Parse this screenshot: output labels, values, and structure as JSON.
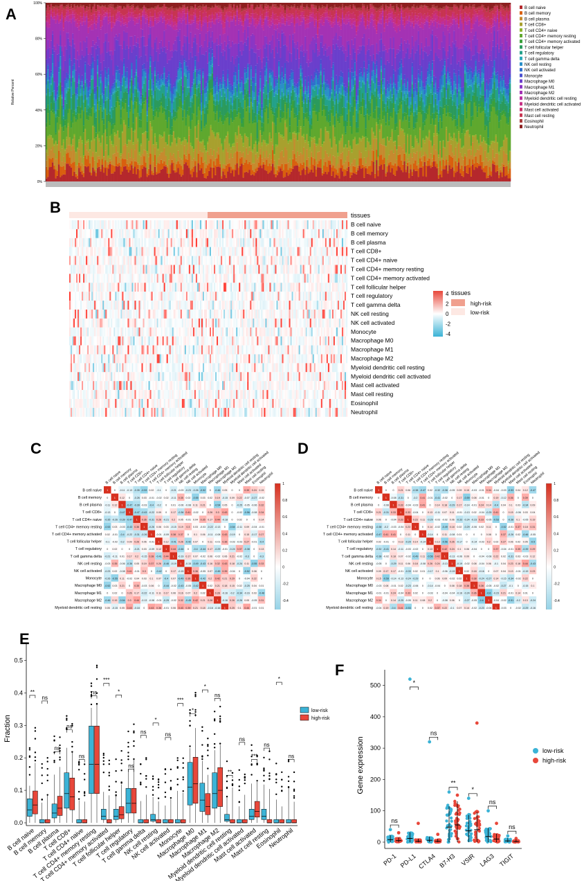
{
  "panels": {
    "A": "A",
    "B": "B",
    "C": "C",
    "D": "D",
    "E": "E",
    "F": "F"
  },
  "cell_types": [
    "B cell naive",
    "B cell memory",
    "B cell plasma",
    "T cell CD8+",
    "T cell CD4+ naive",
    "T cell CD4+ memory resting",
    "T cell CD4+ memory activated",
    "T cell follicular helper",
    "T cell regulatory",
    "T cell gamma delta",
    "NK cell resting",
    "NK cell activated",
    "Monocyte",
    "Macrophage M0",
    "Macrophage M1",
    "Macrophage M2",
    "Myeloid dendritic cell resting",
    "Myeloid dendritic cell activated",
    "Mast cell activated",
    "Mast cell resting",
    "Eosinophil",
    "Neutrophil"
  ],
  "panelA": {
    "ylabel": "Relative Percent",
    "yticks": [
      "0%",
      "20%",
      "40%",
      "60%",
      "80%",
      "100%"
    ],
    "legend_colors": [
      "#b5282c",
      "#d95f0e",
      "#c68a2e",
      "#a8a02e",
      "#8db32b",
      "#5fa82e",
      "#3aa03a",
      "#2a9a5c",
      "#23a18a",
      "#2aa9b8",
      "#2a8fc8",
      "#2f6fcc",
      "#4a4fd0",
      "#6a3fcc",
      "#8a36c4",
      "#a432b4",
      "#bb2f9e",
      "#c62f84",
      "#c93068",
      "#c73450",
      "#a83a3a",
      "#8c1f1f"
    ]
  },
  "panelB": {
    "tissues_label": "tissues",
    "legend_title": "tissues",
    "legend_items": [
      {
        "label": "high-risk",
        "color": "#f0a08e"
      },
      {
        "label": "low-risk",
        "color": "#fde8e3"
      }
    ],
    "colorbar_ticks": [
      "4",
      "2",
      "0",
      "-2",
      "-4"
    ]
  },
  "panelC": {
    "colorbar_ticks": [
      "1",
      "0.8",
      "0.6",
      "0.4",
      "0.2",
      "0",
      "-0.2",
      "-0.4",
      "-0.6",
      "-0.8",
      "-1"
    ],
    "diag_value": "1"
  },
  "panelD": {
    "colorbar_ticks": [
      "1",
      "0.8",
      "0.6",
      "0.4",
      "0.2",
      "0",
      "-0.2",
      "-0.4",
      "-0.6",
      "-0.8",
      "-1"
    ],
    "diag_value": "1"
  },
  "chart_data": [
    {
      "type": "box",
      "panel": "E",
      "ylabel": "Fraction",
      "yticks": [
        "0.0",
        "0.1",
        "0.2",
        "0.3",
        "0.4",
        "0.5"
      ],
      "ylim": [
        0,
        0.55
      ],
      "legend": [
        {
          "name": "low-risk",
          "color": "#3bb3d6"
        },
        {
          "name": "high-risk",
          "color": "#e8473a"
        }
      ],
      "categories": [
        "B cell naive",
        "B cell memory",
        "B cell plasma",
        "T cell CD8+",
        "T cell CD4+ naive",
        "T cell CD4+ memory resting",
        "T cell CD4+ memory activated",
        "T cell follicular helper",
        "T cell regulatory",
        "T cell gamma delta",
        "NK cell resting",
        "NK cell activated",
        "Monocyte",
        "Macrophage M0",
        "Macrophage M1",
        "Macrophage M2",
        "Myeloid dendritic cell resting",
        "Myeloid dendritic cell activated",
        "Mast cell activated",
        "Mast cell resting",
        "Eosinophil",
        "Neutrophil"
      ],
      "significance": [
        "**",
        "ns",
        "ns",
        "ns",
        "ns",
        "ns",
        "***",
        "*",
        "ns",
        "ns",
        "*",
        "ns",
        "***",
        "*",
        "*",
        "ns",
        "**",
        "ns",
        "***",
        "ns",
        "*",
        "ns"
      ],
      "low_median": [
        0.04,
        0.0,
        0.03,
        0.09,
        0.0,
        0.18,
        0.02,
        0.02,
        0.06,
        0.0,
        0.01,
        0.0,
        0.0,
        0.11,
        0.07,
        0.09,
        0.01,
        0.0,
        0.02,
        0.02,
        0.0,
        0.0
      ],
      "high_median": [
        0.055,
        0.0,
        0.045,
        0.08,
        0.0,
        0.18,
        0.0,
        0.025,
        0.06,
        0.0,
        0.0,
        0.0,
        0.0,
        0.12,
        0.05,
        0.1,
        0.0,
        0.0,
        0.035,
        0.0,
        0.0,
        0.0
      ]
    },
    {
      "type": "scatter",
      "panel": "F",
      "ylabel": "Gene expression",
      "yticks": [
        "0",
        "100",
        "200",
        "300",
        "400",
        "500"
      ],
      "ylim": [
        -20,
        550
      ],
      "legend": [
        {
          "name": "low-risk",
          "color": "#3bb3d6"
        },
        {
          "name": "high-risk",
          "color": "#e8473a"
        }
      ],
      "categories": [
        "PD-1",
        "PD-L1",
        "CTLA4",
        "B7-H3",
        "VSIR",
        "LAG3",
        "TIGIT"
      ],
      "significance": [
        "ns",
        "*",
        "ns",
        "**",
        "*",
        "ns",
        "ns"
      ],
      "low_mean": [
        8,
        12,
        6,
        48,
        36,
        18,
        4
      ],
      "high_mean": [
        5,
        3,
        3,
        55,
        40,
        10,
        2
      ],
      "low_max": [
        40,
        520,
        320,
        160,
        140,
        100,
        20
      ],
      "high_max": [
        30,
        60,
        25,
        150,
        380,
        60,
        12
      ]
    }
  ]
}
